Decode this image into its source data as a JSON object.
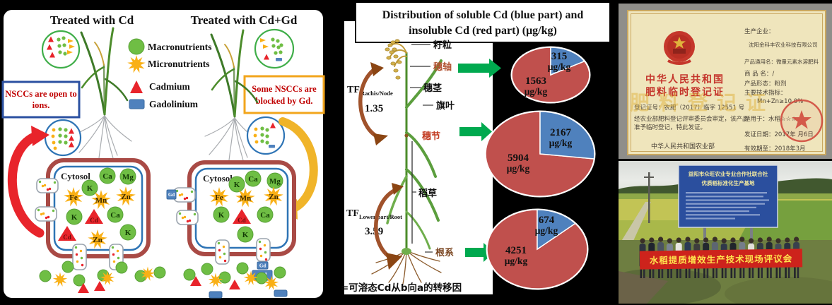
{
  "left_panel": {
    "title_cd": "Treated with Cd",
    "title_cd_gd": "Treated with Cd+Gd",
    "legend": {
      "macronutrients": "Macronutrients",
      "micronutrients": "Micronutrients",
      "cadmium": "Cadmium",
      "gadolinium": "Gadolinium"
    },
    "note_open": {
      "line1": "NSCCs are open to",
      "line2": "ions."
    },
    "note_blocked": {
      "line1": "Some NSCCs are",
      "line2": "blocked by Gd."
    },
    "cytosol_label": "Cytosol",
    "ions": {
      "k": "K",
      "ca": "Ca",
      "mg": "Mg",
      "fe": "Fe",
      "mn": "Mn",
      "zn": "Zn",
      "cd": "Cd",
      "gd": "Gd"
    },
    "colors": {
      "macronutrient_green": "#6FBE44",
      "micronutrient_orange": "#F9B016",
      "cadmium_red": "#E8242B",
      "gadolinium_blue": "#4F81BD",
      "membrane_outer": "#A94A45",
      "membrane_inner": "#2E74B5"
    }
  },
  "middle_panel": {
    "title_line1": "Distribution of soluble Cd (blue part) and",
    "title_line2": "insoluble Cd (red part) (μg/kg)",
    "plant_labels": {
      "grain": "籽粒",
      "rachis": "穗轴",
      "panicle_stem": "穗茎",
      "flag_leaf": "旗叶",
      "panicle_node": "穗节",
      "straw": "稻草",
      "root": "根系"
    },
    "tf_upper": {
      "prefix": "TF",
      "subscript": "Rachis/Node",
      "value": "1.35"
    },
    "tf_lower": {
      "prefix": "TF",
      "subscript": "Lower part/Root",
      "value": "3.59"
    },
    "footnote": "=可溶态Cd从b向a的转移因",
    "chart_data": [
      {
        "type": "pie",
        "linked_plant_label": "穗轴",
        "labels": [
          "soluble Cd",
          "insoluble Cd"
        ],
        "values": [
          315,
          1563
        ],
        "colors": [
          "#4F81BD",
          "#C0504D"
        ],
        "unit": "μg/kg"
      },
      {
        "type": "pie",
        "linked_plant_label": "穗节",
        "labels": [
          "soluble Cd",
          "insoluble Cd"
        ],
        "values": [
          2167,
          5904
        ],
        "colors": [
          "#4F81BD",
          "#C0504D"
        ],
        "unit": "μg/kg"
      },
      {
        "type": "pie",
        "linked_plant_label": "根系",
        "labels": [
          "soluble Cd",
          "insoluble Cd"
        ],
        "values": [
          674,
          4251
        ],
        "colors": [
          "#4F81BD",
          "#C0504D"
        ],
        "unit": "μg/kg"
      }
    ]
  },
  "right_panel": {
    "certificate": {
      "title_line1": "中华人民共和国",
      "title_line2": "肥料临时登记证",
      "reg_no": "登记证号：农肥（2017）临字 12551 号",
      "body_line1": "经农业部肥料登记评审委员会审定，该产品",
      "body_line2": "准予临时登记，特此发证。",
      "issuer": "中华人民共和国农业部",
      "fields": {
        "producer_label": "生产企业：",
        "producer": "沈阳金科丰农业科技有限公司",
        "generic_name": "产品通用名：微量元素水溶肥料",
        "trade_name": "商 品 名：/",
        "form": "产品形态：粉剂",
        "tech_label": "主要技术指标：",
        "tech_value": "Mn+Zn≥10.0%",
        "applicable": "适用于：水稻☆☆☆",
        "issue_date": "发证日期：2017年 月6日",
        "valid_until": "有效期至：2018年3月"
      },
      "watermark": "肥料登记证"
    },
    "photo": {
      "board_line1": "益阳市众旺农业专业合作社联合社",
      "board_line2": "优质稻标准化生产基地",
      "banner": "水稻提质增效生产技术现场评议会"
    }
  }
}
